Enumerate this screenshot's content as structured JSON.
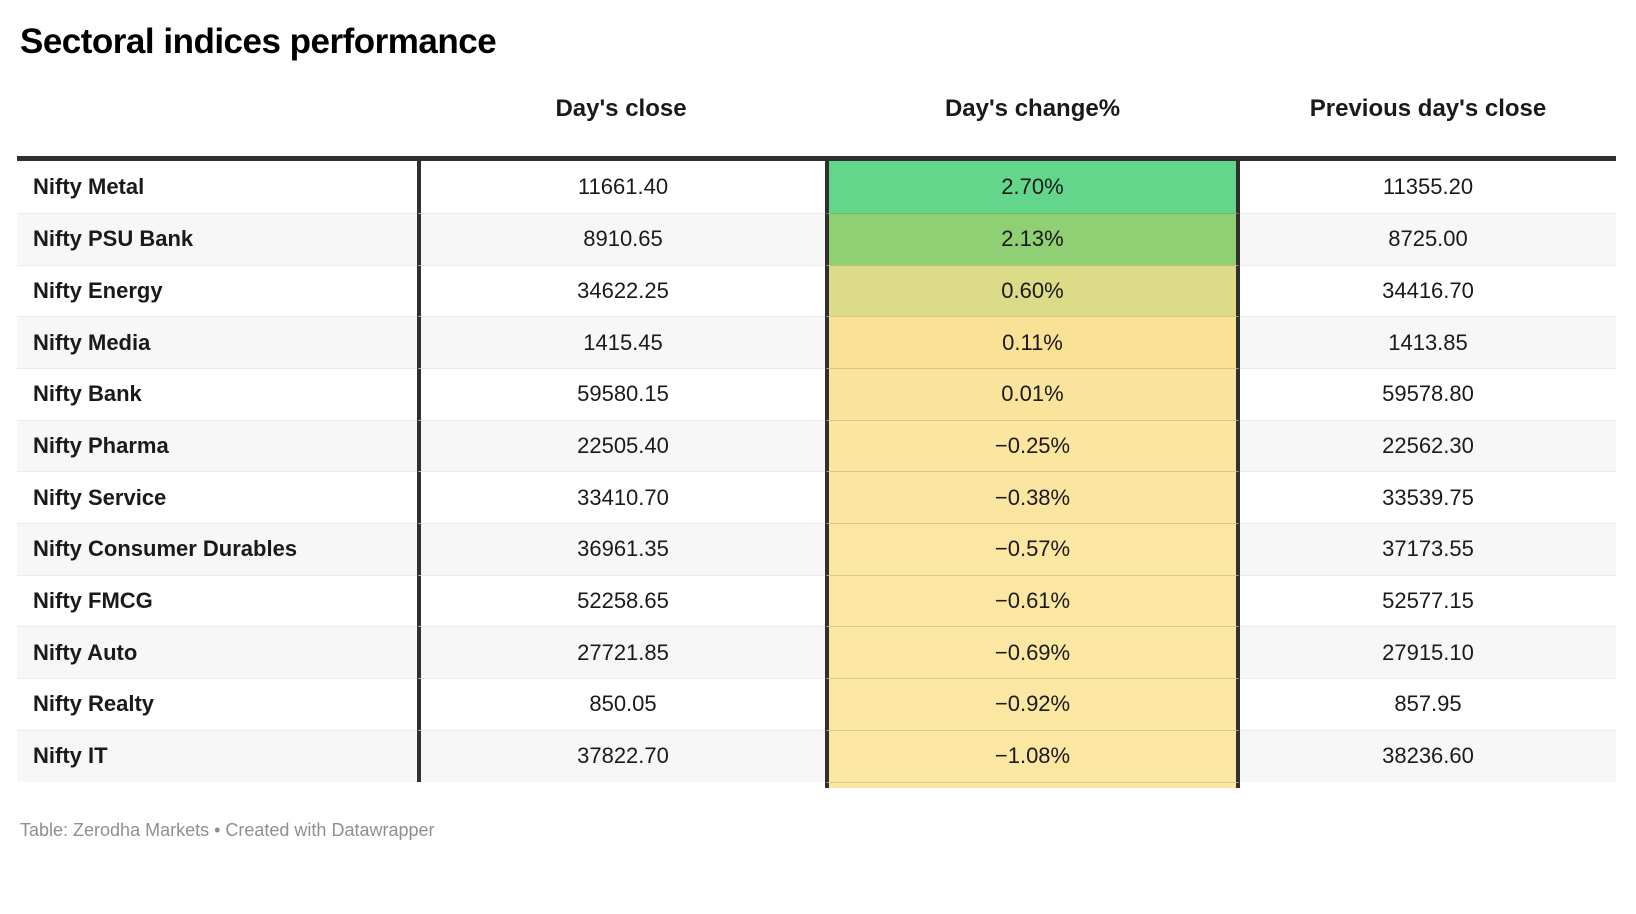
{
  "title": "Sectoral indices performance",
  "table": {
    "headers": {
      "index_column": "",
      "day_close": "Day's close",
      "day_change": "Day's change%",
      "prev_close": "Previous day's close"
    },
    "rows": [
      {
        "label": "Nifty Metal",
        "day_close": "11661.40",
        "day_change": "2.70%",
        "change_color": "#63d68c",
        "prev_close": "11355.20"
      },
      {
        "label": "Nifty PSU Bank",
        "day_close": "8910.65",
        "day_change": "2.13%",
        "change_color": "#8fd075",
        "prev_close": "8725.00"
      },
      {
        "label": "Nifty Energy",
        "day_close": "34622.25",
        "day_change": "0.60%",
        "change_color": "#dcdb88",
        "prev_close": "34416.70"
      },
      {
        "label": "Nifty Media",
        "day_close": "1415.45",
        "day_change": "0.11%",
        "change_color": "#f9e296",
        "prev_close": "1413.85"
      },
      {
        "label": "Nifty Bank",
        "day_close": "59580.15",
        "day_change": "0.01%",
        "change_color": "#fae49b",
        "prev_close": "59578.80"
      },
      {
        "label": "Nifty Pharma",
        "day_close": "22505.40",
        "day_change": "−0.25%",
        "change_color": "#fbe59f",
        "prev_close": "22562.30"
      },
      {
        "label": "Nifty Service",
        "day_close": "33410.70",
        "day_change": "−0.38%",
        "change_color": "#fbe5a1",
        "prev_close": "33539.75"
      },
      {
        "label": "Nifty Consumer Durables",
        "day_close": "36961.35",
        "day_change": "−0.57%",
        "change_color": "#fbe6a2",
        "prev_close": "37173.55"
      },
      {
        "label": "Nifty FMCG",
        "day_close": "52258.65",
        "day_change": "−0.61%",
        "change_color": "#fbe6a2",
        "prev_close": "52577.15"
      },
      {
        "label": "Nifty Auto",
        "day_close": "27721.85",
        "day_change": "−0.69%",
        "change_color": "#fbe6a2",
        "prev_close": "27915.10"
      },
      {
        "label": "Nifty Realty",
        "day_close": "850.05",
        "day_change": "−0.92%",
        "change_color": "#fbe6a2",
        "prev_close": "857.95"
      },
      {
        "label": "Nifty IT",
        "day_close": "37822.70",
        "day_change": "−1.08%",
        "change_color": "#fbe6a2",
        "prev_close": "38236.60"
      }
    ]
  },
  "footer": {
    "attribution": "Table: Zerodha Markets • Created with Datawrapper"
  },
  "colors": {
    "header_border": "#303030",
    "row_stripe": "#f7f7f7",
    "row_divider": "#ebebeb",
    "footer_text": "#8f8f8f",
    "positive_high": "#63d68c",
    "negative_low": "#fbe6a2"
  },
  "chart_data": {
    "type": "table",
    "title": "Sectoral indices performance",
    "columns": [
      "Day's close",
      "Day's change%",
      "Previous day's close"
    ],
    "rows": [
      {
        "index": "Nifty Metal",
        "day_close": 11661.4,
        "day_change_pct": 2.7,
        "prev_close": 11355.2
      },
      {
        "index": "Nifty PSU Bank",
        "day_close": 8910.65,
        "day_change_pct": 2.13,
        "prev_close": 8725.0
      },
      {
        "index": "Nifty Energy",
        "day_close": 34622.25,
        "day_change_pct": 0.6,
        "prev_close": 34416.7
      },
      {
        "index": "Nifty Media",
        "day_close": 1415.45,
        "day_change_pct": 0.11,
        "prev_close": 1413.85
      },
      {
        "index": "Nifty Bank",
        "day_close": 59580.15,
        "day_change_pct": 0.01,
        "prev_close": 59578.8
      },
      {
        "index": "Nifty Pharma",
        "day_close": 22505.4,
        "day_change_pct": -0.25,
        "prev_close": 22562.3
      },
      {
        "index": "Nifty Service",
        "day_close": 33410.7,
        "day_change_pct": -0.38,
        "prev_close": 33539.75
      },
      {
        "index": "Nifty Consumer Durables",
        "day_close": 36961.35,
        "day_change_pct": -0.57,
        "prev_close": 37173.55
      },
      {
        "index": "Nifty FMCG",
        "day_close": 52258.65,
        "day_change_pct": -0.61,
        "prev_close": 52577.15
      },
      {
        "index": "Nifty Auto",
        "day_close": 27721.85,
        "day_change_pct": -0.69,
        "prev_close": 27915.1
      },
      {
        "index": "Nifty Realty",
        "day_close": 850.05,
        "day_change_pct": -0.92,
        "prev_close": 857.95
      },
      {
        "index": "Nifty IT",
        "day_close": 37822.7,
        "day_change_pct": -1.08,
        "prev_close": 38236.6
      }
    ],
    "heatmap_column": "Day's change%",
    "heatmap_scale": "green (high positive) to pale yellow (negative)",
    "source": "Table: Zerodha Markets • Created with Datawrapper"
  }
}
